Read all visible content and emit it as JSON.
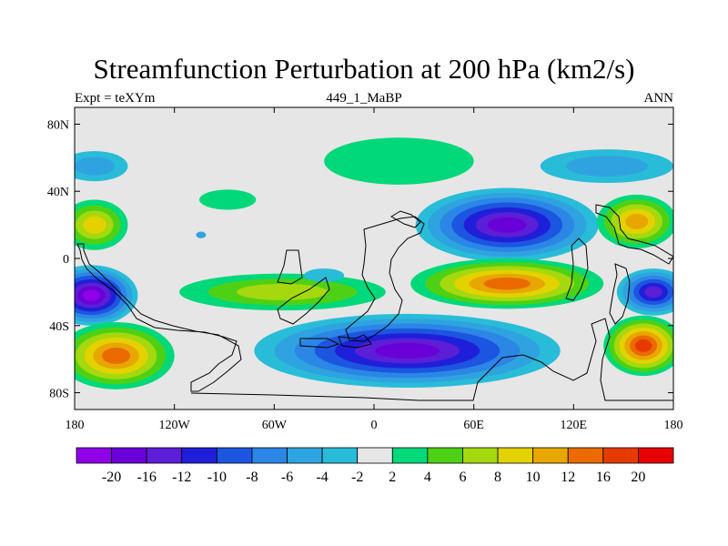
{
  "title": "Streamfunction Perturbation at 200 hPa (km2/s)",
  "left_string": "Expt = teXYm",
  "center_string": "449_1_MaBP",
  "right_string": "ANN",
  "x_ticks": [
    {
      "lon": -180,
      "label": "180"
    },
    {
      "lon": -120,
      "label": "120W"
    },
    {
      "lon": -60,
      "label": "60W"
    },
    {
      "lon": 0,
      "label": "0"
    },
    {
      "lon": 60,
      "label": "60E"
    },
    {
      "lon": 120,
      "label": "120E"
    },
    {
      "lon": 180,
      "label": "180"
    }
  ],
  "y_ticks": [
    {
      "lat": 80,
      "label": "80N"
    },
    {
      "lat": 40,
      "label": "40N"
    },
    {
      "lat": 0,
      "label": "0"
    },
    {
      "lat": -40,
      "label": "40S"
    },
    {
      "lat": -80,
      "label": "80S"
    }
  ],
  "lon_range": [
    -180,
    180
  ],
  "lat_range": [
    -90,
    90
  ],
  "background_color": "#e6e6e6",
  "colorbar": {
    "colors": [
      "#8f00e8",
      "#6a00d8",
      "#5c1ed6",
      "#1f1fd9",
      "#1c55e0",
      "#2b86e6",
      "#2fa3e0",
      "#29bcd9",
      "#e6e6e6",
      "#00d87a",
      "#4ed114",
      "#a6d80f",
      "#e3d200",
      "#e8a600",
      "#ea6a00",
      "#e63b00",
      "#e60000"
    ],
    "labels": [
      "-20",
      "-16",
      "-12",
      "-10",
      "-8",
      "-6",
      "-4",
      "-2",
      "2",
      "4",
      "6",
      "8",
      "10",
      "12",
      "16",
      "20"
    ]
  },
  "features": [
    {
      "lon": -168,
      "lat": 55,
      "rx": 20,
      "ry": 9,
      "rings": [
        [
          8,
          "#29bcd9"
        ],
        [
          6,
          "#2fa3e0"
        ]
      ]
    },
    {
      "lon": 140,
      "lat": 55,
      "rx": 40,
      "ry": 10,
      "rings": [
        [
          8,
          "#29bcd9"
        ],
        [
          7,
          "#2fa3e0"
        ]
      ]
    },
    {
      "lon": 15,
      "lat": 58,
      "rx": 45,
      "ry": 14,
      "rings": [
        [
          9,
          "#00d87a"
        ]
      ]
    },
    {
      "lon": -88,
      "lat": 35,
      "rx": 17,
      "ry": 6,
      "rings": [
        [
          9,
          "#00d87a"
        ]
      ]
    },
    {
      "lon": -104,
      "lat": 14,
      "rx": 3,
      "ry": 2,
      "rings": [
        [
          7,
          "#2fa3e0"
        ]
      ]
    },
    {
      "lon": 80,
      "lat": 20,
      "rx": 55,
      "ry": 22,
      "rings": [
        [
          8,
          "#29bcd9"
        ],
        [
          7,
          "#2fa3e0"
        ],
        [
          6,
          "#2b86e6"
        ],
        [
          5,
          "#1c55e0"
        ],
        [
          4,
          "#1f1fd9"
        ],
        [
          3,
          "#5c1ed6"
        ],
        [
          1,
          "#6a00d8"
        ]
      ]
    },
    {
      "lon": -168,
      "lat": 20,
      "rx": 20,
      "ry": 15,
      "rings": [
        [
          9,
          "#00d87a"
        ],
        [
          10,
          "#4ed114"
        ],
        [
          11,
          "#a6d80f"
        ],
        [
          12,
          "#e3d200"
        ]
      ]
    },
    {
      "lon": 158,
      "lat": 22,
      "rx": 24,
      "ry": 16,
      "rings": [
        [
          9,
          "#00d87a"
        ],
        [
          10,
          "#4ed114"
        ],
        [
          11,
          "#a6d80f"
        ],
        [
          12,
          "#e3d200"
        ],
        [
          13,
          "#e8a600"
        ]
      ]
    },
    {
      "lon": -55,
      "lat": -20,
      "rx": 62,
      "ry": 11,
      "rings": [
        [
          9,
          "#00d87a"
        ],
        [
          10,
          "#4ed114"
        ],
        [
          11,
          "#a6d80f"
        ]
      ]
    },
    {
      "lon": 80,
      "lat": -15,
      "rx": 58,
      "ry": 15,
      "rings": [
        [
          9,
          "#00d87a"
        ],
        [
          10,
          "#4ed114"
        ],
        [
          11,
          "#a6d80f"
        ],
        [
          12,
          "#e3d200"
        ],
        [
          13,
          "#e8a600"
        ],
        [
          14,
          "#ea6a00"
        ]
      ]
    },
    {
      "lon": -170,
      "lat": -22,
      "rx": 28,
      "ry": 18,
      "rings": [
        [
          8,
          "#29bcd9"
        ],
        [
          7,
          "#2fa3e0"
        ],
        [
          6,
          "#2b86e6"
        ],
        [
          5,
          "#1c55e0"
        ],
        [
          4,
          "#1f1fd9"
        ],
        [
          3,
          "#5c1ed6"
        ],
        [
          2,
          "#6a00d8"
        ],
        [
          0,
          "#8f00e8"
        ]
      ]
    },
    {
      "lon": 168,
      "lat": -20,
      "rx": 22,
      "ry": 14,
      "rings": [
        [
          8,
          "#29bcd9"
        ],
        [
          7,
          "#2fa3e0"
        ],
        [
          6,
          "#2b86e6"
        ],
        [
          5,
          "#1c55e0"
        ],
        [
          4,
          "#1f1fd9"
        ],
        [
          3,
          "#5c1ed6"
        ]
      ]
    },
    {
      "lon": -30,
      "lat": -10,
      "rx": 12,
      "ry": 4,
      "rings": [
        [
          8,
          "#29bcd9"
        ]
      ]
    },
    {
      "lon": 20,
      "lat": -55,
      "rx": 92,
      "ry": 22,
      "rings": [
        [
          8,
          "#29bcd9"
        ],
        [
          7,
          "#2fa3e0"
        ],
        [
          6,
          "#2b86e6"
        ],
        [
          5,
          "#1c55e0"
        ],
        [
          4,
          "#1f1fd9"
        ],
        [
          3,
          "#5c1ed6"
        ],
        [
          2,
          "#6a00d8"
        ]
      ]
    },
    {
      "lon": -155,
      "lat": -58,
      "rx": 35,
      "ry": 20,
      "rings": [
        [
          9,
          "#00d87a"
        ],
        [
          10,
          "#4ed114"
        ],
        [
          11,
          "#a6d80f"
        ],
        [
          12,
          "#e3d200"
        ],
        [
          13,
          "#e8a600"
        ],
        [
          14,
          "#ea6a00"
        ]
      ]
    },
    {
      "lon": 162,
      "lat": -52,
      "rx": 24,
      "ry": 18,
      "rings": [
        [
          9,
          "#00d87a"
        ],
        [
          10,
          "#4ed114"
        ],
        [
          11,
          "#a6d80f"
        ],
        [
          12,
          "#e3d200"
        ],
        [
          13,
          "#e8a600"
        ],
        [
          14,
          "#ea6a00"
        ],
        [
          15,
          "#e63b00"
        ]
      ]
    }
  ]
}
